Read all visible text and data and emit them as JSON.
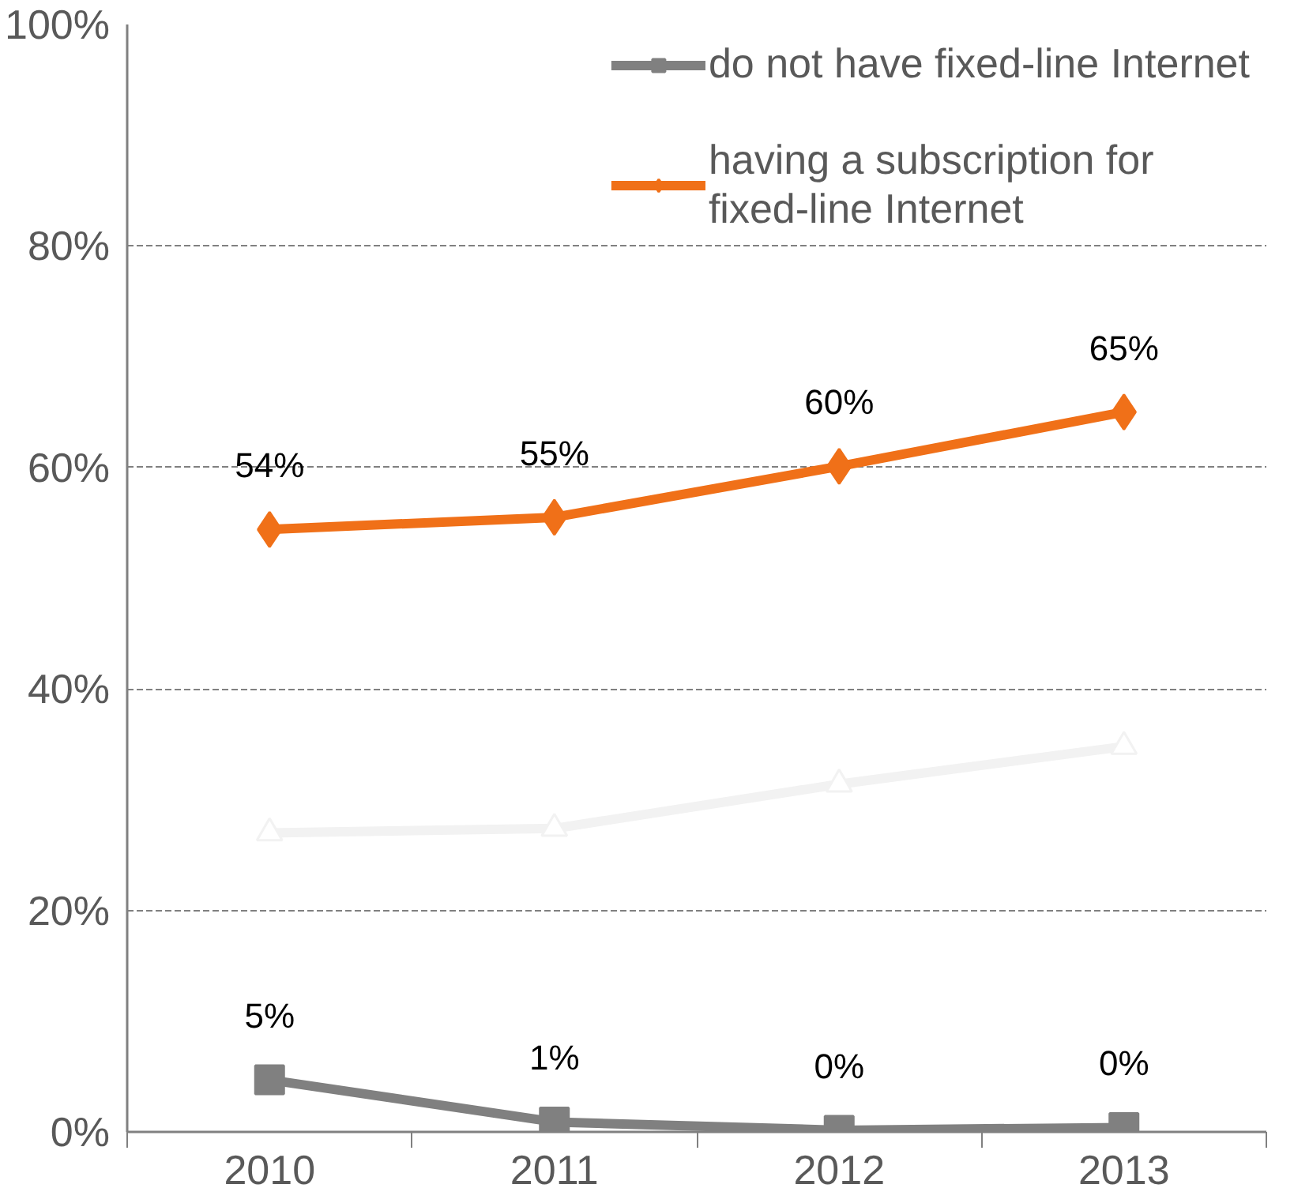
{
  "chart_data": {
    "type": "line",
    "categories": [
      "2010",
      "2011",
      "2012",
      "2013"
    ],
    "series": [
      {
        "name": "do not have fixed-line Internet",
        "color": "#808080",
        "marker": "square",
        "values": [
          4.7,
          0.9,
          0.15,
          0.4
        ],
        "value_labels": [
          "5%",
          "1%",
          "0%",
          "0%"
        ]
      },
      {
        "name": "having a subscription for fixed-line Internet",
        "color": "#f07018",
        "marker": "diamond",
        "values": [
          54.4,
          55.5,
          60.1,
          65.0
        ],
        "value_labels": [
          "54%",
          "55%",
          "60%",
          "65%"
        ]
      },
      {
        "color": "#f2f2f2",
        "marker": "triangle",
        "values": [
          27.0,
          27.4,
          31.4,
          34.8
        ]
      }
    ],
    "ylim": [
      0,
      100
    ],
    "yticks": [
      {
        "value": 0,
        "label": "0%"
      },
      {
        "value": 20,
        "label": "20%"
      },
      {
        "value": 40,
        "label": "40%"
      },
      {
        "value": 60,
        "label": "60%"
      },
      {
        "value": 80,
        "label": "80%"
      },
      {
        "value": 100,
        "label": "100%"
      }
    ],
    "grid": "y",
    "legend": "top right",
    "line_style": "solid"
  }
}
